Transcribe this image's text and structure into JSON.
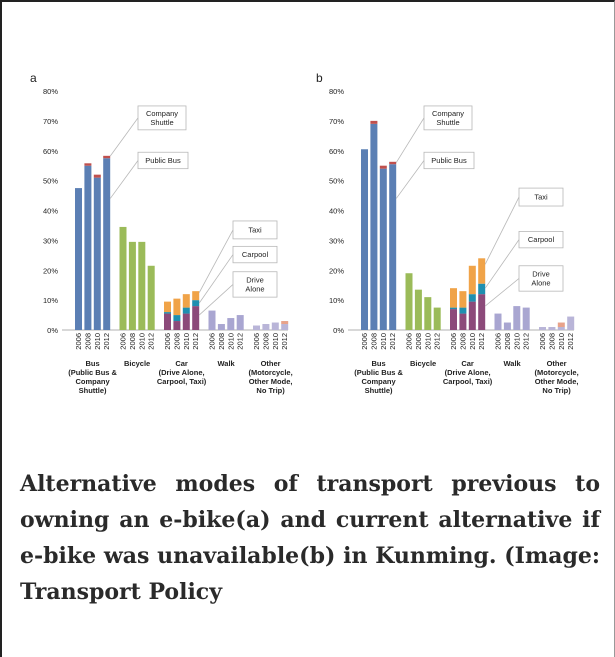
{
  "caption": "Alternative modes of transport previous to owning an e-bike(a) and current alternative if e-bike was unavailable(b) in Kunming. (Image: Transport Policy",
  "colors": {
    "bus": "#5b7fb4",
    "bus_shuttle": "#c0504d",
    "bicycle": "#9bbb59",
    "car_drive_alone": "#8c4a7a",
    "car_carpool": "#1f8fb0",
    "car_taxi": "#f0a348",
    "walk": "#a9a6d1",
    "other": "#b9b5d8",
    "other_extra": "#e8a28a"
  },
  "chart_data": [
    {
      "type": "bar",
      "panel_label": "a",
      "stacked": true,
      "ylim": [
        0,
        80
      ],
      "yticks": [
        "0%",
        "10%",
        "20%",
        "30%",
        "40%",
        "50%",
        "60%",
        "70%",
        "80%"
      ],
      "year_labels": [
        "2006",
        "2008",
        "2010",
        "2012"
      ],
      "groups": [
        {
          "label": [
            "Bus",
            "(Public Bus &",
            "Company",
            "Shuttle)"
          ],
          "bars": [
            [
              [
                "bus",
                47.5
              ],
              [
                "bus_shuttle",
                0
              ]
            ],
            [
              [
                "bus",
                55
              ],
              [
                "bus_shuttle",
                0.8
              ]
            ],
            [
              [
                "bus",
                51
              ],
              [
                "bus_shuttle",
                1
              ]
            ],
            [
              [
                "bus",
                57.5
              ],
              [
                "bus_shuttle",
                0.8
              ]
            ]
          ]
        },
        {
          "label": [
            "Bicycle"
          ],
          "bars": [
            [
              [
                "bicycle",
                34.5
              ]
            ],
            [
              [
                "bicycle",
                29.5
              ]
            ],
            [
              [
                "bicycle",
                29.5
              ]
            ],
            [
              [
                "bicycle",
                21.5
              ]
            ]
          ]
        },
        {
          "label": [
            "Car",
            "(Drive Alone,",
            "Carpool, Taxi)"
          ],
          "bars": [
            [
              [
                "car_drive_alone",
                5.5
              ],
              [
                "car_carpool",
                0.5
              ],
              [
                "car_taxi",
                3.5
              ]
            ],
            [
              [
                "car_drive_alone",
                3
              ],
              [
                "car_carpool",
                2
              ],
              [
                "car_taxi",
                5.5
              ]
            ],
            [
              [
                "car_drive_alone",
                5.5
              ],
              [
                "car_carpool",
                2
              ],
              [
                "car_taxi",
                4.5
              ]
            ],
            [
              [
                "car_drive_alone",
                8
              ],
              [
                "car_carpool",
                2
              ],
              [
                "car_taxi",
                3
              ]
            ]
          ]
        },
        {
          "label": [
            "Walk"
          ],
          "bars": [
            [
              [
                "walk",
                6.5
              ]
            ],
            [
              [
                "walk",
                2
              ]
            ],
            [
              [
                "walk",
                4
              ]
            ],
            [
              [
                "walk",
                5
              ]
            ]
          ]
        },
        {
          "label": [
            "Other",
            "(Motorcycle,",
            "Other Mode,",
            "No Trip)"
          ],
          "bars": [
            [
              [
                "other",
                1.5
              ]
            ],
            [
              [
                "other",
                2
              ]
            ],
            [
              [
                "other",
                2.5
              ]
            ],
            [
              [
                "other",
                2
              ],
              [
                "other_extra",
                1
              ]
            ]
          ]
        }
      ],
      "callouts": [
        {
          "lines": [
            "Company",
            "Shuttle"
          ],
          "y_top": 75,
          "y_bottom": 67,
          "target_group": 0,
          "target_bar": 3,
          "target_value": 58.2
        },
        {
          "lines": [
            "Public Bus"
          ],
          "y_top": 59.5,
          "y_bottom": 54,
          "target_group": 0,
          "target_bar": 3,
          "target_value": 44
        },
        {
          "lines": [
            "Taxi"
          ],
          "y_top": 36.5,
          "y_bottom": 30.5,
          "target_group": 2,
          "target_bar": 3,
          "target_value": 12.5
        },
        {
          "lines": [
            "Carpool"
          ],
          "y_top": 28,
          "y_bottom": 22.5,
          "target_group": 2,
          "target_bar": 3,
          "target_value": 9
        },
        {
          "lines": [
            "Drive",
            "Alone"
          ],
          "y_top": 19.5,
          "y_bottom": 11,
          "target_group": 2,
          "target_bar": 3,
          "target_value": 5
        }
      ]
    },
    {
      "type": "bar",
      "panel_label": "b",
      "stacked": true,
      "ylim": [
        0,
        80
      ],
      "yticks": [
        "0%",
        "10%",
        "20%",
        "30%",
        "40%",
        "50%",
        "60%",
        "70%",
        "80%"
      ],
      "year_labels": [
        "2006",
        "2008",
        "2010",
        "2012"
      ],
      "groups": [
        {
          "label": [
            "Bus",
            "(Public Bus &",
            "Company",
            "Shuttle)"
          ],
          "bars": [
            [
              [
                "bus",
                60.5
              ],
              [
                "bus_shuttle",
                0
              ]
            ],
            [
              [
                "bus",
                69
              ],
              [
                "bus_shuttle",
                1
              ]
            ],
            [
              [
                "bus",
                54
              ],
              [
                "bus_shuttle",
                1
              ]
            ],
            [
              [
                "bus",
                55.5
              ],
              [
                "bus_shuttle",
                0.8
              ]
            ]
          ]
        },
        {
          "label": [
            "Bicycle"
          ],
          "bars": [
            [
              [
                "bicycle",
                19
              ]
            ],
            [
              [
                "bicycle",
                13.5
              ]
            ],
            [
              [
                "bicycle",
                11
              ]
            ],
            [
              [
                "bicycle",
                7.5
              ]
            ]
          ]
        },
        {
          "label": [
            "Car",
            "(Drive Alone,",
            "Carpool, Taxi)"
          ],
          "bars": [
            [
              [
                "car_drive_alone",
                7
              ],
              [
                "car_carpool",
                0.5
              ],
              [
                "car_taxi",
                6.5
              ]
            ],
            [
              [
                "car_drive_alone",
                5.5
              ],
              [
                "car_carpool",
                2
              ],
              [
                "car_taxi",
                5.5
              ]
            ],
            [
              [
                "car_drive_alone",
                9.5
              ],
              [
                "car_carpool",
                2.5
              ],
              [
                "car_taxi",
                9.5
              ]
            ],
            [
              [
                "car_drive_alone",
                12
              ],
              [
                "car_carpool",
                3.5
              ],
              [
                "car_taxi",
                8.5
              ]
            ]
          ]
        },
        {
          "label": [
            "Walk"
          ],
          "bars": [
            [
              [
                "walk",
                5.5
              ]
            ],
            [
              [
                "walk",
                2.5
              ]
            ],
            [
              [
                "walk",
                8
              ]
            ],
            [
              [
                "walk",
                7.5
              ]
            ]
          ]
        },
        {
          "label": [
            "Other",
            "(Motorcycle,",
            "Other Mode,",
            "No Trip)"
          ],
          "bars": [
            [
              [
                "other",
                1
              ]
            ],
            [
              [
                "other",
                1
              ]
            ],
            [
              [
                "other",
                1
              ],
              [
                "other_extra",
                1.5
              ]
            ],
            [
              [
                "other",
                4.5
              ]
            ]
          ]
        }
      ],
      "callouts": [
        {
          "lines": [
            "Company",
            "Shuttle"
          ],
          "y_top": 75,
          "y_bottom": 67,
          "target_group": 0,
          "target_bar": 3,
          "target_value": 56
        },
        {
          "lines": [
            "Public Bus"
          ],
          "y_top": 59.5,
          "y_bottom": 54,
          "target_group": 0,
          "target_bar": 3,
          "target_value": 44
        },
        {
          "lines": [
            "Taxi"
          ],
          "y_top": 47.5,
          "y_bottom": 41.5,
          "target_group": 2,
          "target_bar": 3,
          "target_value": 22
        },
        {
          "lines": [
            "Carpool"
          ],
          "y_top": 33,
          "y_bottom": 27.5,
          "target_group": 2,
          "target_bar": 3,
          "target_value": 14
        },
        {
          "lines": [
            "Drive",
            "Alone"
          ],
          "y_top": 21.5,
          "y_bottom": 13,
          "target_group": 2,
          "target_bar": 3,
          "target_value": 8
        }
      ]
    }
  ]
}
